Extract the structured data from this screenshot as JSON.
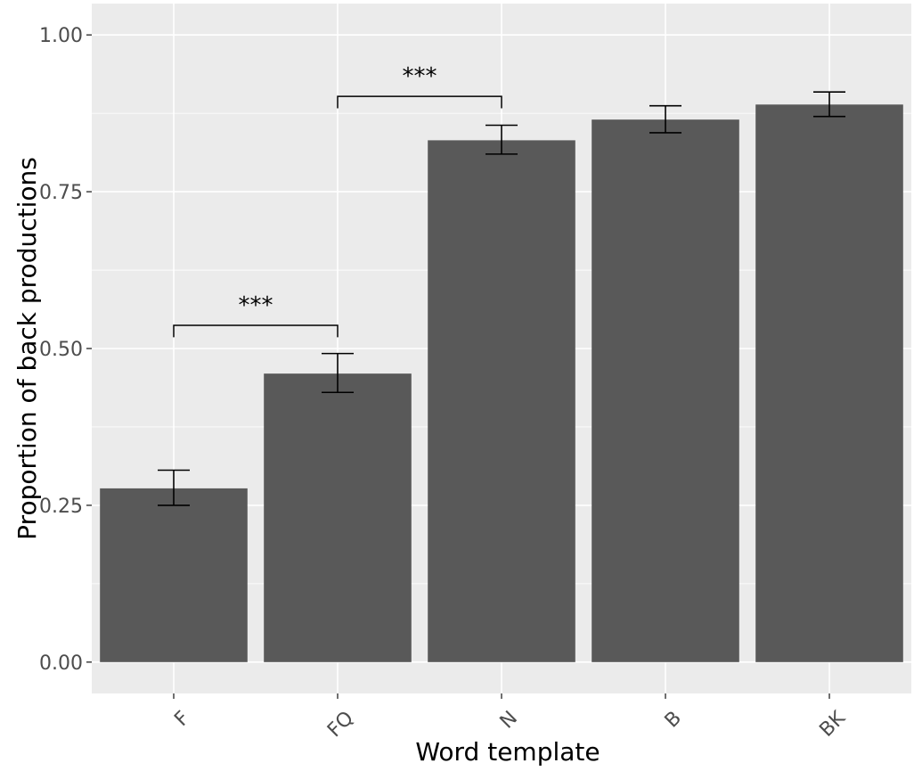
{
  "chart_data": {
    "type": "bar",
    "xlabel": "Word template",
    "ylabel": "Proportion of back productions",
    "categories": [
      "F",
      "FQ",
      "N",
      "B",
      "BK"
    ],
    "values": [
      0.277,
      0.46,
      0.832,
      0.865,
      0.889
    ],
    "error_bars": [
      {
        "low": 0.25,
        "high": 0.306
      },
      {
        "low": 0.43,
        "high": 0.492
      },
      {
        "low": 0.81,
        "high": 0.856
      },
      {
        "low": 0.844,
        "high": 0.887
      },
      {
        "low": 0.87,
        "high": 0.909
      }
    ],
    "ylim": [
      -0.05,
      1.05
    ],
    "yticks": [
      0.0,
      0.25,
      0.5,
      0.75,
      1.0
    ],
    "ytick_labels": [
      "0.00",
      "0.25",
      "0.50",
      "0.75",
      "1.00"
    ],
    "grid": true,
    "significance": [
      {
        "from": "F",
        "to": "FQ",
        "label": "***",
        "bracket_y": 0.537,
        "tip_y": 0.518
      },
      {
        "from": "FQ",
        "to": "N",
        "label": "***",
        "bracket_y": 0.902,
        "tip_y": 0.883
      }
    ],
    "colors": {
      "bar": "#595959",
      "panel": "#ebebeb",
      "grid": "#ffffff",
      "error_bar": "#000000"
    }
  }
}
